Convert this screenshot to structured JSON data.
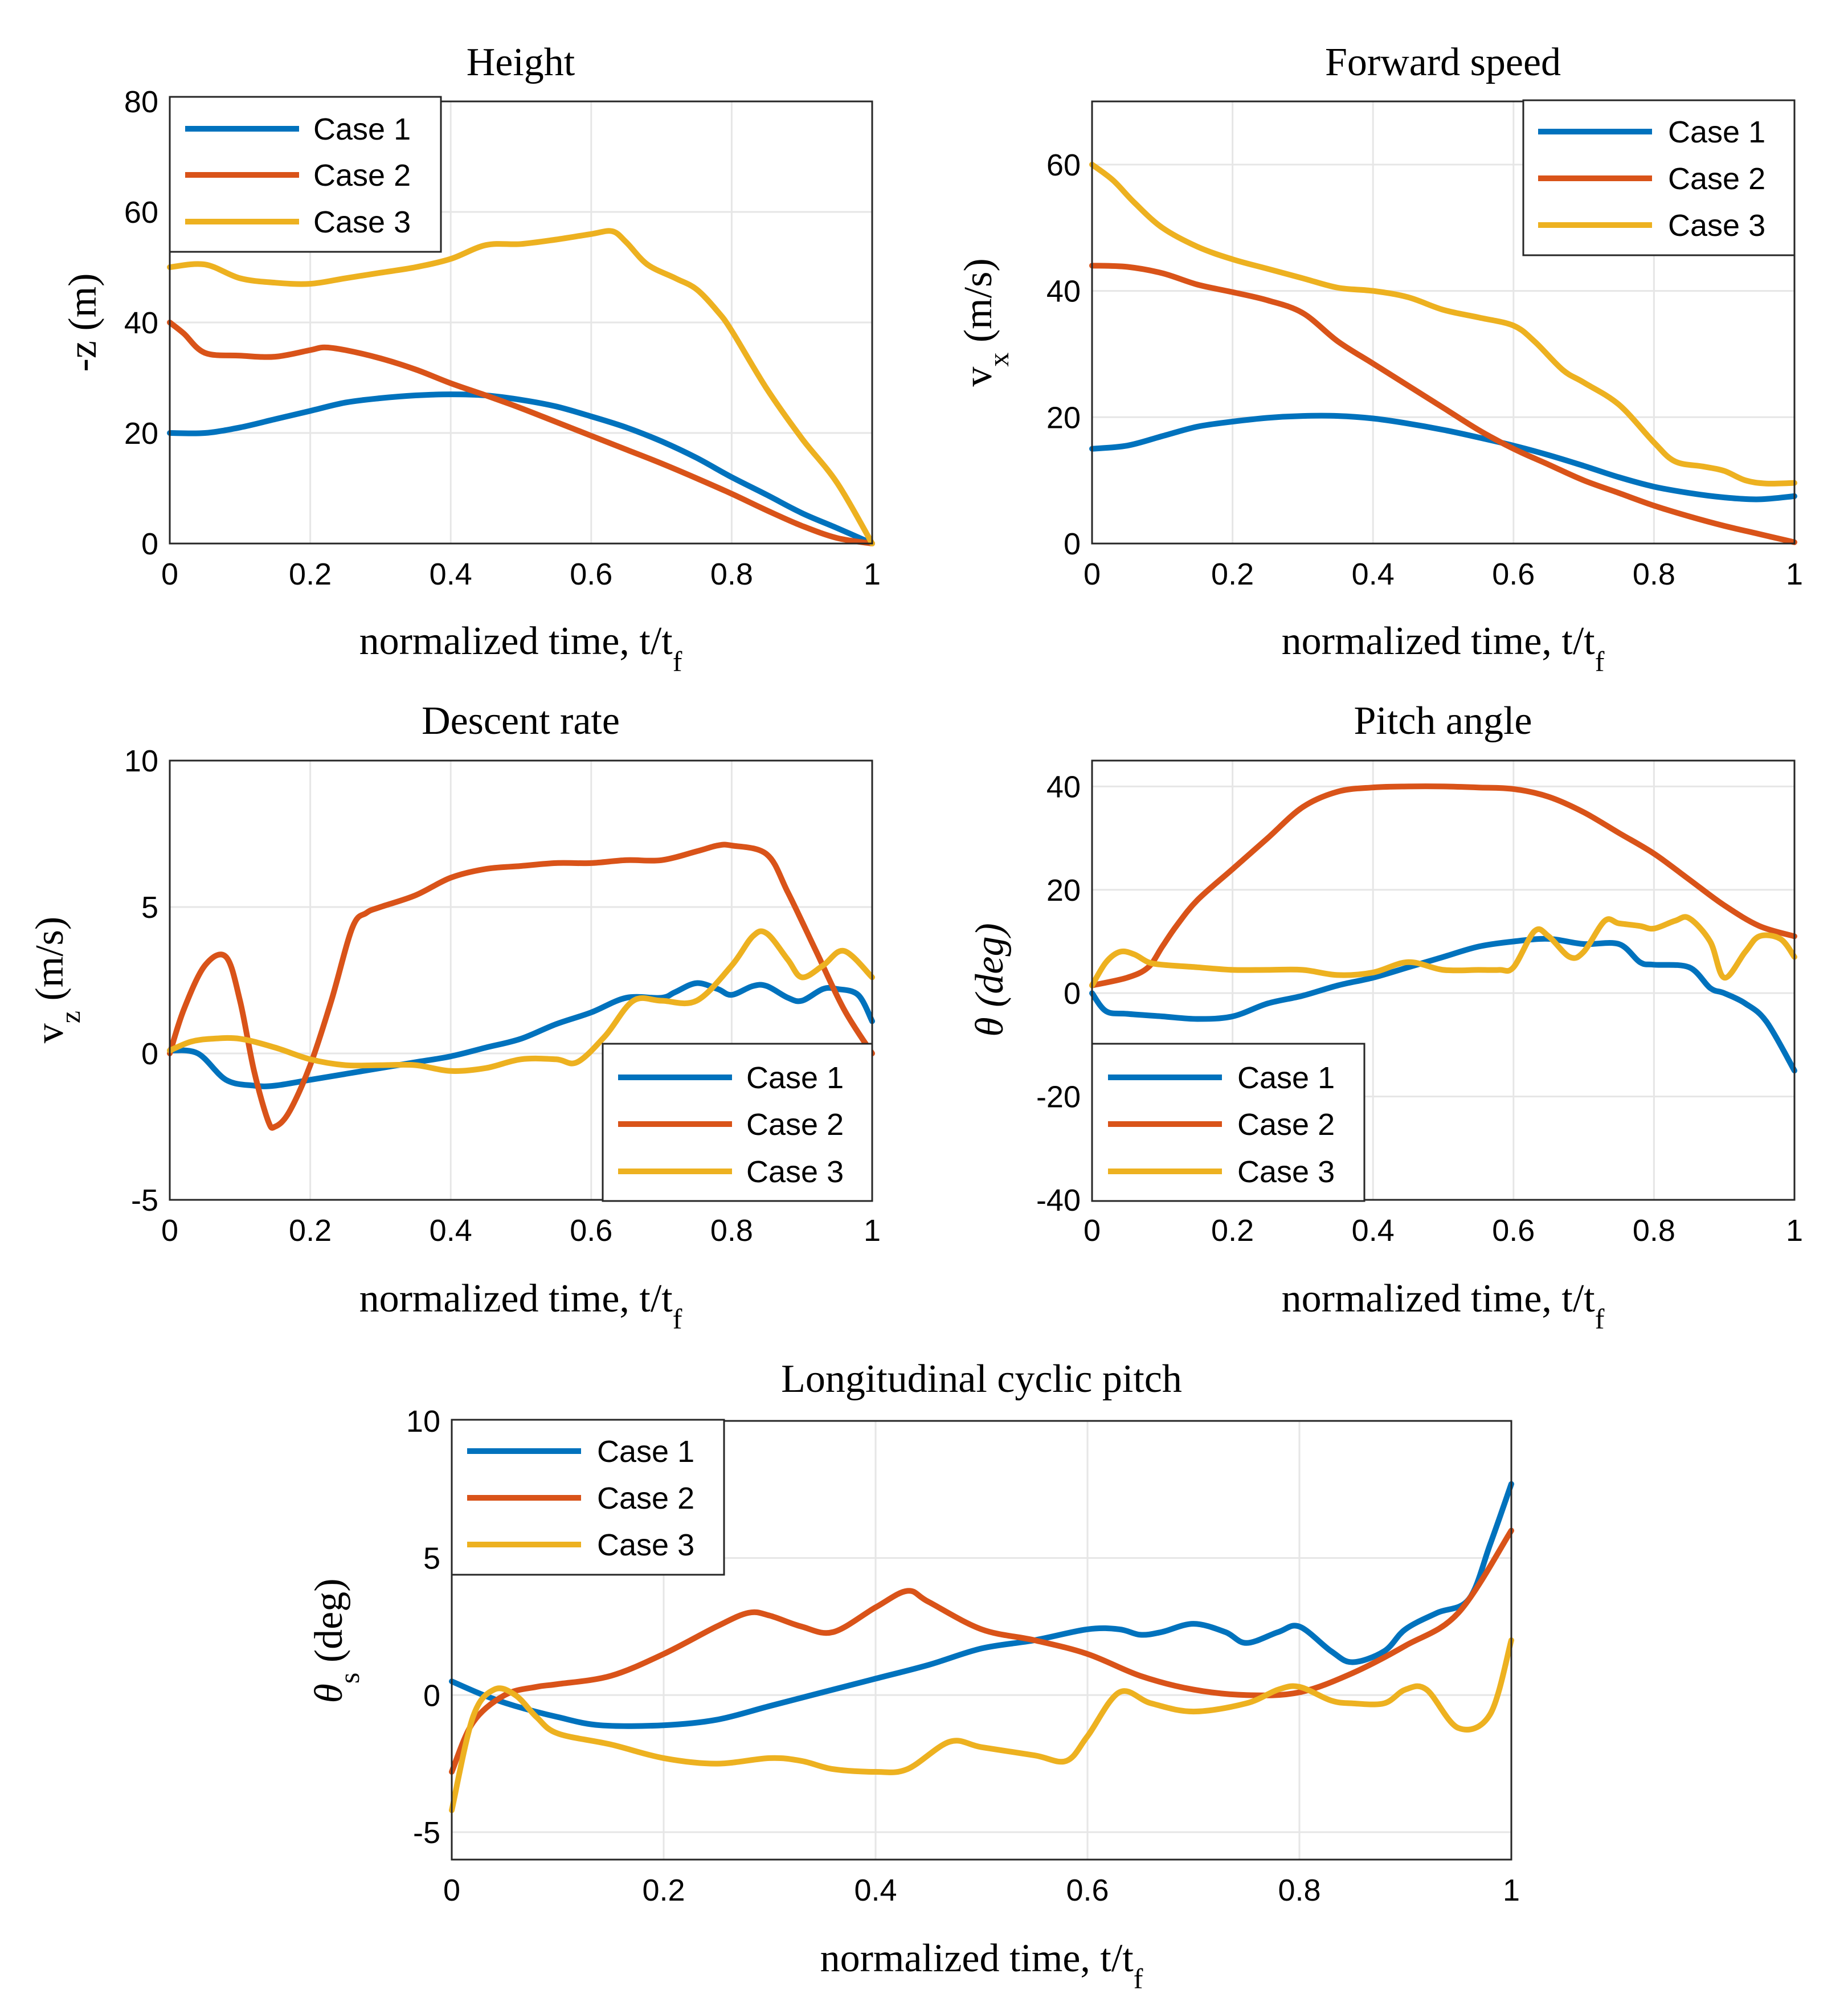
{
  "colors": {
    "case1": "#0072BD",
    "case2": "#D95319",
    "case3": "#EDB120"
  },
  "chart_data": [
    {
      "type": "line",
      "title": "Height",
      "xlabel": "normalized time, t/t",
      "xlabel_sub": "f",
      "ylabel": "-z (m)",
      "ylabel_sub": "",
      "xlim": [
        0,
        1
      ],
      "ylim": [
        0,
        80
      ],
      "xticks": [
        0,
        0.2,
        0.4,
        0.6,
        0.8,
        1
      ],
      "xtick_labels": [
        "0",
        "0.2",
        "0.4",
        "0.6",
        "0.8",
        "1"
      ],
      "yticks": [
        0,
        20,
        40,
        60,
        80
      ],
      "ytick_labels": [
        "0",
        "20",
        "40",
        "60",
        "80"
      ],
      "grid": true,
      "legend_position": "top-left",
      "series": [
        {
          "name": "Case 1",
          "x": [
            0,
            0.05,
            0.1,
            0.15,
            0.2,
            0.25,
            0.3,
            0.35,
            0.4,
            0.45,
            0.5,
            0.55,
            0.6,
            0.65,
            0.7,
            0.75,
            0.8,
            0.85,
            0.9,
            0.95,
            1
          ],
          "values": [
            20,
            20,
            21,
            22.5,
            24,
            25.5,
            26.3,
            26.8,
            27,
            26.8,
            26,
            24.8,
            23,
            21,
            18.5,
            15.5,
            12,
            8.8,
            5.5,
            2.8,
            0
          ]
        },
        {
          "name": "Case 2",
          "x": [
            0,
            0.02,
            0.05,
            0.1,
            0.15,
            0.2,
            0.22,
            0.25,
            0.3,
            0.35,
            0.4,
            0.45,
            0.5,
            0.55,
            0.6,
            0.65,
            0.7,
            0.75,
            0.8,
            0.85,
            0.9,
            0.95,
            1
          ],
          "values": [
            40,
            38,
            34.5,
            34,
            33.8,
            35,
            35.5,
            35,
            33.5,
            31.5,
            29,
            26.8,
            24.5,
            22,
            19.5,
            17,
            14.5,
            11.8,
            9,
            6,
            3.2,
            1,
            0
          ]
        },
        {
          "name": "Case 3",
          "x": [
            0,
            0.05,
            0.1,
            0.15,
            0.2,
            0.25,
            0.3,
            0.35,
            0.4,
            0.45,
            0.5,
            0.55,
            0.6,
            0.63,
            0.65,
            0.68,
            0.72,
            0.75,
            0.78,
            0.8,
            0.85,
            0.9,
            0.95,
            1
          ],
          "values": [
            50,
            50.5,
            48,
            47.2,
            47,
            48,
            49,
            50,
            51.5,
            54,
            54.2,
            55,
            56,
            56.5,
            54.5,
            50.5,
            48,
            46,
            42,
            38.5,
            28,
            19,
            11,
            0
          ]
        }
      ]
    },
    {
      "type": "line",
      "title": "Forward speed",
      "xlabel": "normalized time, t/t",
      "xlabel_sub": "f",
      "ylabel": "v",
      "ylabel_sub": "x",
      "ylabel_rest": " (m/s)",
      "xlim": [
        0,
        1
      ],
      "ylim": [
        0,
        70
      ],
      "xticks": [
        0,
        0.2,
        0.4,
        0.6,
        0.8,
        1
      ],
      "xtick_labels": [
        "0",
        "0.2",
        "0.4",
        "0.6",
        "0.8",
        "1"
      ],
      "yticks": [
        0,
        20,
        40,
        60
      ],
      "ytick_labels": [
        "0",
        "20",
        "40",
        "60"
      ],
      "grid": true,
      "legend_position": "top-right",
      "series": [
        {
          "name": "Case 1",
          "x": [
            0,
            0.05,
            0.1,
            0.15,
            0.2,
            0.25,
            0.3,
            0.35,
            0.4,
            0.45,
            0.5,
            0.55,
            0.6,
            0.65,
            0.7,
            0.75,
            0.8,
            0.85,
            0.9,
            0.95,
            1
          ],
          "values": [
            15,
            15.5,
            17,
            18.5,
            19.3,
            19.9,
            20.2,
            20.2,
            19.8,
            19,
            18,
            16.8,
            15.5,
            14,
            12.3,
            10.5,
            9,
            8,
            7.3,
            7,
            7.5
          ]
        },
        {
          "name": "Case 2",
          "x": [
            0,
            0.05,
            0.1,
            0.15,
            0.2,
            0.25,
            0.3,
            0.35,
            0.4,
            0.45,
            0.5,
            0.55,
            0.6,
            0.65,
            0.7,
            0.75,
            0.8,
            0.85,
            0.9,
            0.95,
            1
          ],
          "values": [
            44,
            43.8,
            42.8,
            41,
            39.8,
            38.5,
            36.5,
            32,
            28.5,
            25,
            21.5,
            18,
            15,
            12.5,
            10,
            8,
            6,
            4.3,
            2.8,
            1.5,
            0.2
          ]
        },
        {
          "name": "Case 3",
          "x": [
            0,
            0.03,
            0.06,
            0.1,
            0.15,
            0.2,
            0.25,
            0.3,
            0.35,
            0.4,
            0.45,
            0.5,
            0.55,
            0.6,
            0.63,
            0.67,
            0.7,
            0.75,
            0.8,
            0.83,
            0.87,
            0.9,
            0.93,
            0.96,
            1
          ],
          "values": [
            60,
            57.5,
            54,
            50,
            47,
            45,
            43.5,
            42,
            40.5,
            40,
            39,
            37,
            35.8,
            34.5,
            32,
            27.5,
            25.5,
            22,
            16,
            13,
            12.2,
            11.5,
            10,
            9.5,
            9.6
          ]
        }
      ]
    },
    {
      "type": "line",
      "title": "Descent rate",
      "xlabel": "normalized time, t/t",
      "xlabel_sub": "f",
      "ylabel": "v",
      "ylabel_sub": "z",
      "ylabel_rest": " (m/s)",
      "xlim": [
        0,
        1
      ],
      "ylim": [
        -5,
        10
      ],
      "xticks": [
        0,
        0.2,
        0.4,
        0.6,
        0.8,
        1
      ],
      "xtick_labels": [
        "0",
        "0.2",
        "0.4",
        "0.6",
        "0.8",
        "1"
      ],
      "yticks": [
        -5,
        0,
        5,
        10
      ],
      "ytick_labels": [
        "-5",
        "0",
        "5",
        "10"
      ],
      "grid": true,
      "legend_position": "bottom-right",
      "series": [
        {
          "name": "Case 1",
          "x": [
            0,
            0.04,
            0.08,
            0.12,
            0.15,
            0.2,
            0.25,
            0.3,
            0.35,
            0.4,
            0.45,
            0.5,
            0.55,
            0.6,
            0.65,
            0.7,
            0.72,
            0.75,
            0.78,
            0.8,
            0.83,
            0.85,
            0.88,
            0.9,
            0.93,
            0.95,
            0.98,
            1
          ],
          "values": [
            0.1,
            0,
            -0.9,
            -1.1,
            -1.1,
            -0.9,
            -0.7,
            -0.5,
            -0.3,
            -0.1,
            0.2,
            0.5,
            1,
            1.4,
            1.9,
            1.9,
            2.1,
            2.4,
            2.2,
            2,
            2.3,
            2.3,
            1.9,
            1.8,
            2.2,
            2.2,
            2,
            1.1
          ]
        },
        {
          "name": "Case 2",
          "x": [
            0,
            0.02,
            0.05,
            0.08,
            0.1,
            0.12,
            0.14,
            0.15,
            0.17,
            0.2,
            0.23,
            0.26,
            0.28,
            0.3,
            0.35,
            0.4,
            0.45,
            0.5,
            0.55,
            0.6,
            0.65,
            0.7,
            0.75,
            0.78,
            0.8,
            0.85,
            0.88,
            0.92,
            0.96,
            1
          ],
          "values": [
            0,
            1.5,
            3,
            3.3,
            1.8,
            -0.6,
            -2.3,
            -2.5,
            -2,
            -0.4,
            1.8,
            4.3,
            4.8,
            5,
            5.4,
            6,
            6.3,
            6.4,
            6.5,
            6.5,
            6.6,
            6.6,
            6.9,
            7.1,
            7.1,
            6.8,
            5.5,
            3.5,
            1.5,
            0
          ]
        },
        {
          "name": "Case 3",
          "x": [
            0,
            0.03,
            0.06,
            0.1,
            0.15,
            0.2,
            0.25,
            0.3,
            0.35,
            0.4,
            0.45,
            0.5,
            0.55,
            0.58,
            0.62,
            0.66,
            0.7,
            0.75,
            0.8,
            0.83,
            0.85,
            0.88,
            0.9,
            0.93,
            0.96,
            1
          ],
          "values": [
            0.1,
            0.4,
            0.5,
            0.5,
            0.2,
            -0.2,
            -0.4,
            -0.4,
            -0.4,
            -0.6,
            -0.5,
            -0.2,
            -0.2,
            -0.3,
            0.6,
            1.8,
            1.8,
            1.8,
            3,
            4,
            4.1,
            3.2,
            2.6,
            3,
            3.5,
            2.6
          ]
        }
      ]
    },
    {
      "type": "line",
      "title": "Pitch angle",
      "xlabel": "normalized time, t/t",
      "xlabel_sub": "f",
      "ylabel": "θ (deg)",
      "ylabel_sub": "",
      "xlim": [
        0,
        1
      ],
      "ylim": [
        -40,
        45
      ],
      "xticks": [
        0,
        0.2,
        0.4,
        0.6,
        0.8,
        1
      ],
      "xtick_labels": [
        "0",
        "0.2",
        "0.4",
        "0.6",
        "0.8",
        "1"
      ],
      "yticks": [
        -40,
        -20,
        0,
        20,
        40
      ],
      "ytick_labels": [
        "-40",
        "-20",
        "0",
        "20",
        "40"
      ],
      "grid": true,
      "legend_position": "bottom-left",
      "series": [
        {
          "name": "Case 1",
          "x": [
            0,
            0.02,
            0.05,
            0.1,
            0.15,
            0.2,
            0.25,
            0.3,
            0.35,
            0.4,
            0.45,
            0.5,
            0.55,
            0.6,
            0.65,
            0.7,
            0.75,
            0.78,
            0.8,
            0.85,
            0.88,
            0.9,
            0.93,
            0.96,
            1
          ],
          "values": [
            0,
            -3.5,
            -4,
            -4.5,
            -5,
            -4.5,
            -2,
            -0.5,
            1.5,
            3,
            5,
            7,
            9,
            10,
            10.5,
            9.5,
            9.5,
            6,
            5.5,
            5,
            1,
            0,
            -2,
            -5.5,
            -15
          ]
        },
        {
          "name": "Case 2",
          "x": [
            0,
            0.05,
            0.08,
            0.1,
            0.12,
            0.15,
            0.2,
            0.25,
            0.3,
            0.35,
            0.4,
            0.45,
            0.5,
            0.55,
            0.6,
            0.65,
            0.7,
            0.75,
            0.8,
            0.85,
            0.9,
            0.95,
            1
          ],
          "values": [
            1.5,
            3,
            5,
            9,
            13,
            18,
            24,
            30,
            36,
            39,
            39.8,
            40,
            40,
            39.8,
            39.5,
            38,
            35,
            31,
            27,
            22,
            17,
            13,
            11
          ]
        },
        {
          "name": "Case 3",
          "x": [
            0,
            0.02,
            0.04,
            0.06,
            0.08,
            0.1,
            0.15,
            0.2,
            0.25,
            0.3,
            0.35,
            0.4,
            0.45,
            0.5,
            0.55,
            0.58,
            0.6,
            0.63,
            0.65,
            0.68,
            0.7,
            0.73,
            0.75,
            0.78,
            0.8,
            0.83,
            0.85,
            0.88,
            0.9,
            0.93,
            0.95,
            0.98,
            1
          ],
          "values": [
            1.5,
            6,
            8,
            7.5,
            6,
            5.5,
            5,
            4.5,
            4.5,
            4.5,
            3.5,
            4,
            6,
            4.5,
            4.5,
            4.5,
            5,
            12,
            11,
            7,
            8,
            14,
            13.5,
            13,
            12.5,
            14,
            14.5,
            10,
            3,
            8,
            11,
            10.5,
            7
          ]
        }
      ]
    },
    {
      "type": "line",
      "title": "Longitudinal cyclic pitch",
      "xlabel": "normalized time, t/t",
      "xlabel_sub": "f",
      "ylabel": "θ",
      "ylabel_sub": "s",
      "ylabel_rest": " (deg)",
      "xlim": [
        0,
        1
      ],
      "ylim": [
        -6,
        10
      ],
      "xticks": [
        0,
        0.2,
        0.4,
        0.6,
        0.8,
        1
      ],
      "xtick_labels": [
        "0",
        "0.2",
        "0.4",
        "0.6",
        "0.8",
        "1"
      ],
      "yticks": [
        -5,
        0,
        5,
        10
      ],
      "ytick_labels": [
        "-5",
        "0",
        "5",
        "10"
      ],
      "grid": true,
      "legend_position": "top-left",
      "series": [
        {
          "name": "Case 1",
          "x": [
            0,
            0.03,
            0.06,
            0.1,
            0.14,
            0.2,
            0.25,
            0.3,
            0.35,
            0.4,
            0.45,
            0.5,
            0.55,
            0.6,
            0.63,
            0.65,
            0.67,
            0.7,
            0.73,
            0.75,
            0.78,
            0.8,
            0.83,
            0.85,
            0.88,
            0.9,
            0.93,
            0.96,
            0.98,
            1
          ],
          "values": [
            0.5,
            0,
            -0.4,
            -0.8,
            -1.1,
            -1.1,
            -0.9,
            -0.4,
            0.1,
            0.6,
            1.1,
            1.7,
            2,
            2.4,
            2.4,
            2.2,
            2.3,
            2.6,
            2.3,
            1.9,
            2.3,
            2.5,
            1.6,
            1.2,
            1.6,
            2.4,
            3,
            3.5,
            5.5,
            7.7
          ]
        },
        {
          "name": "Case 2",
          "x": [
            0,
            0.02,
            0.05,
            0.08,
            0.1,
            0.15,
            0.2,
            0.25,
            0.28,
            0.3,
            0.33,
            0.36,
            0.4,
            0.43,
            0.45,
            0.5,
            0.55,
            0.6,
            0.65,
            0.7,
            0.75,
            0.8,
            0.85,
            0.9,
            0.95,
            1
          ],
          "values": [
            -2.8,
            -1,
            0,
            0.3,
            0.4,
            0.7,
            1.5,
            2.5,
            3,
            2.9,
            2.5,
            2.3,
            3.2,
            3.8,
            3.4,
            2.4,
            2,
            1.5,
            0.7,
            0.2,
            0,
            0.1,
            0.8,
            1.8,
            3,
            6
          ]
        },
        {
          "name": "Case 3",
          "x": [
            0,
            0.02,
            0.04,
            0.06,
            0.08,
            0.1,
            0.15,
            0.2,
            0.25,
            0.3,
            0.33,
            0.36,
            0.4,
            0.43,
            0.47,
            0.5,
            0.55,
            0.58,
            0.6,
            0.63,
            0.66,
            0.7,
            0.75,
            0.78,
            0.8,
            0.83,
            0.85,
            0.88,
            0.9,
            0.92,
            0.95,
            0.98,
            1
          ],
          "values": [
            -4.2,
            -0.8,
            0.2,
            0,
            -0.8,
            -1.4,
            -1.8,
            -2.3,
            -2.5,
            -2.3,
            -2.4,
            -2.7,
            -2.8,
            -2.7,
            -1.7,
            -1.9,
            -2.2,
            -2.4,
            -1.5,
            0.1,
            -0.3,
            -0.6,
            -0.3,
            0.2,
            0.3,
            -0.2,
            -0.3,
            -0.3,
            0.2,
            0.2,
            -1.2,
            -0.7,
            2
          ]
        }
      ]
    }
  ]
}
